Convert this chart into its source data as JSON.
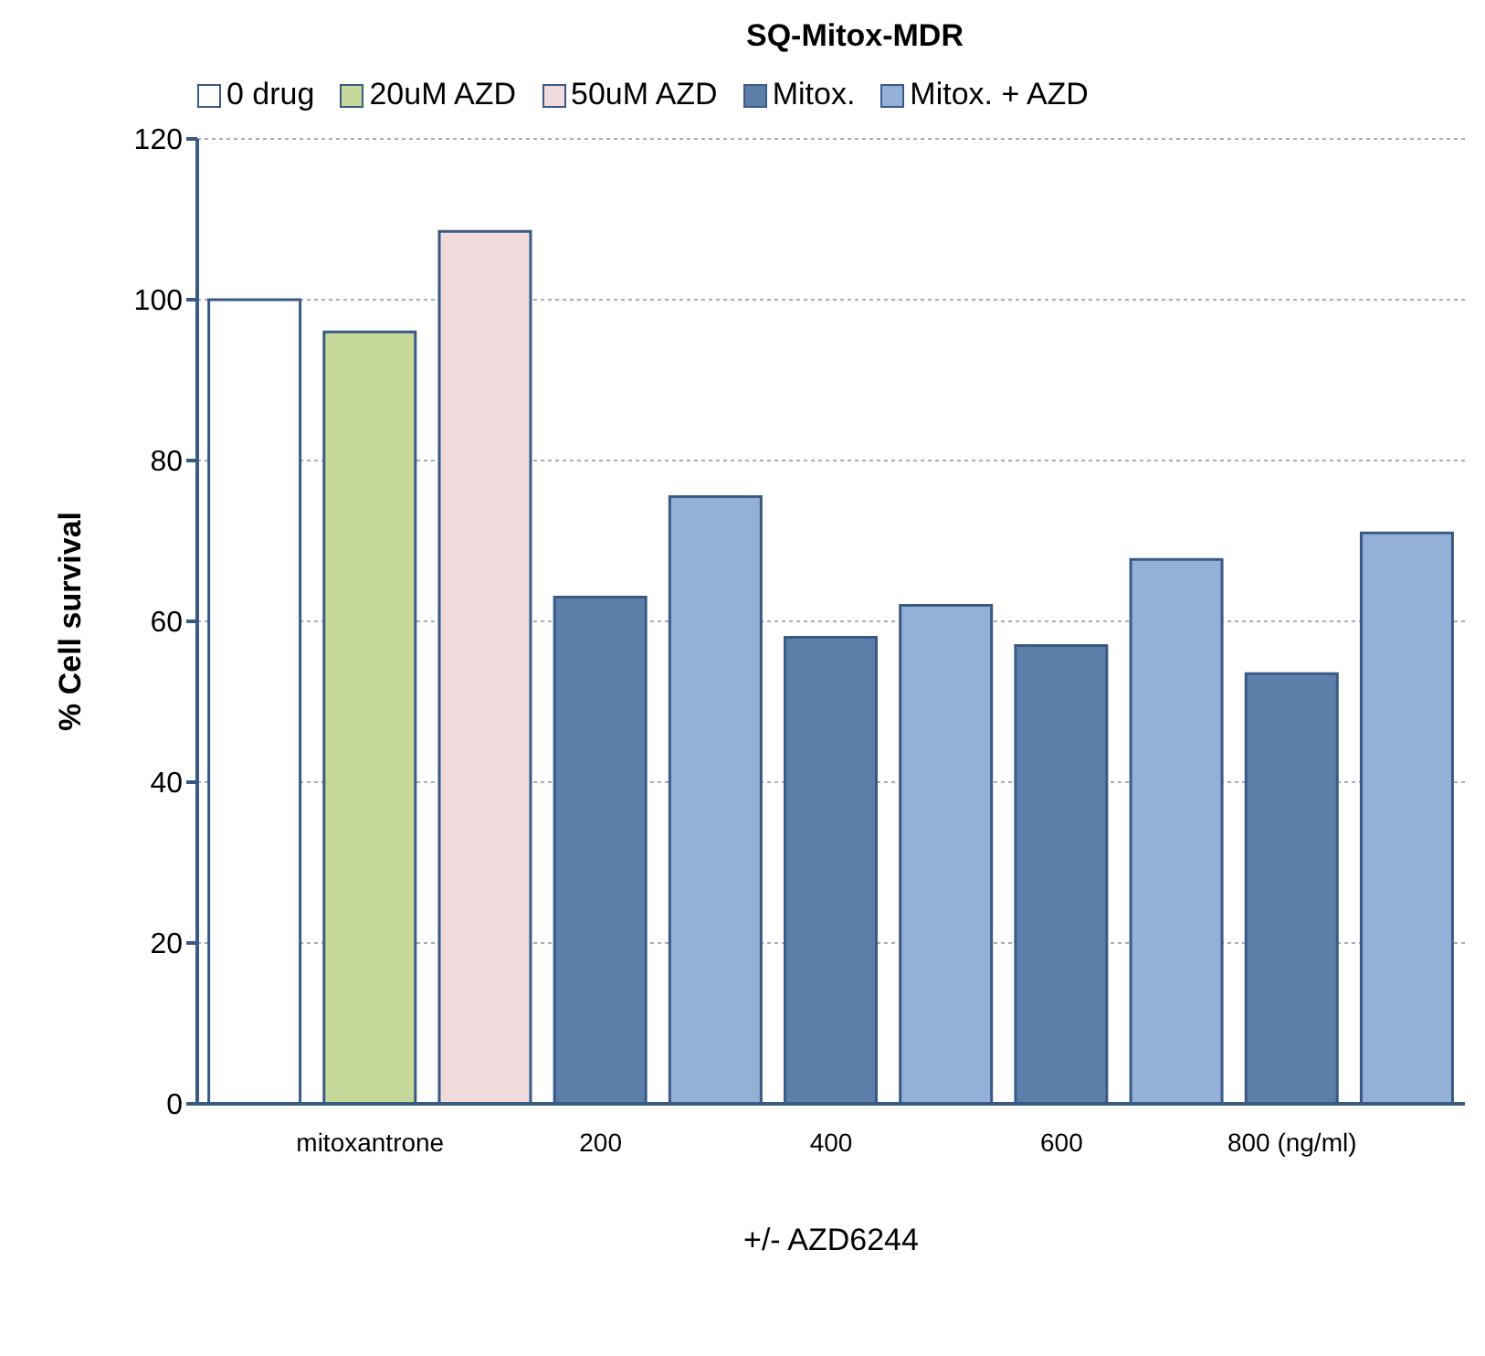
{
  "chart_data": {
    "type": "bar",
    "title": "SQ-Mitox-MDR",
    "xlabel": "+/- AZD6244",
    "ylabel": "% Cell survival",
    "categories": [
      null,
      "mitoxantrone",
      null,
      "200",
      null,
      "400",
      null,
      "600",
      null,
      "800 (ng/ml)",
      null
    ],
    "series": [
      {
        "name": "0 drug",
        "color": "#ffffff",
        "values": [
          100,
          null,
          null,
          null,
          null,
          null,
          null,
          null,
          null,
          null,
          null
        ]
      },
      {
        "name": "20uM AZD",
        "color": "#c6d99a",
        "values": [
          null,
          96,
          null,
          null,
          null,
          null,
          null,
          null,
          null,
          null,
          null
        ]
      },
      {
        "name": "50uM AZD",
        "color": "#f0dadb",
        "values": [
          null,
          null,
          108.5,
          null,
          null,
          null,
          null,
          null,
          null,
          null,
          null
        ]
      },
      {
        "name": "Mitox.",
        "color": "#5b7fa8",
        "values": [
          null,
          null,
          null,
          63,
          null,
          58,
          null,
          57,
          null,
          53.5,
          null
        ]
      },
      {
        "name": "Mitox. + AZD",
        "color": "#93b1d6",
        "values": [
          null,
          null,
          null,
          null,
          75.5,
          null,
          62,
          null,
          67.7,
          null,
          71
        ]
      }
    ],
    "ylim": [
      0,
      120
    ],
    "yticks": [
      0,
      20,
      40,
      60,
      80,
      100,
      120
    ],
    "grid": "y",
    "legend": "top left"
  }
}
